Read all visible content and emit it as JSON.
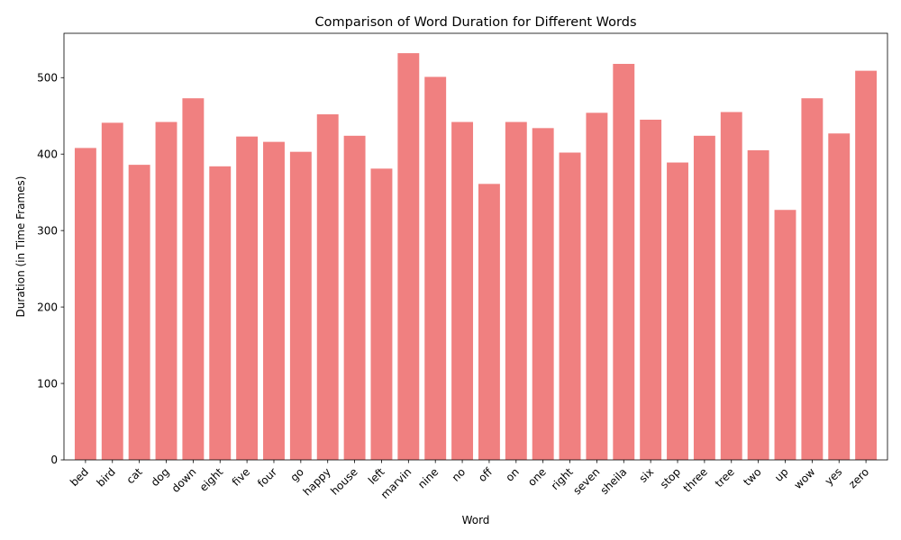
{
  "chart_data": {
    "type": "bar",
    "title": "Comparison of Word Duration for Different Words",
    "xlabel": "Word",
    "ylabel": "Duration (in Time Frames)",
    "categories": [
      "bed",
      "bird",
      "cat",
      "dog",
      "down",
      "eight",
      "five",
      "four",
      "go",
      "happy",
      "house",
      "left",
      "marvin",
      "nine",
      "no",
      "off",
      "on",
      "one",
      "right",
      "seven",
      "sheila",
      "six",
      "stop",
      "three",
      "tree",
      "two",
      "up",
      "wow",
      "yes",
      "zero"
    ],
    "values": [
      408,
      441,
      386,
      442,
      473,
      384,
      423,
      416,
      403,
      452,
      424,
      381,
      532,
      501,
      442,
      361,
      442,
      434,
      402,
      454,
      518,
      445,
      389,
      424,
      455,
      405,
      327,
      473,
      427,
      509
    ],
    "ylim": [
      0,
      558
    ],
    "yticks": [
      0,
      100,
      200,
      300,
      400,
      500
    ],
    "bar_color": "#f08080",
    "grid": false,
    "legend": "none"
  }
}
